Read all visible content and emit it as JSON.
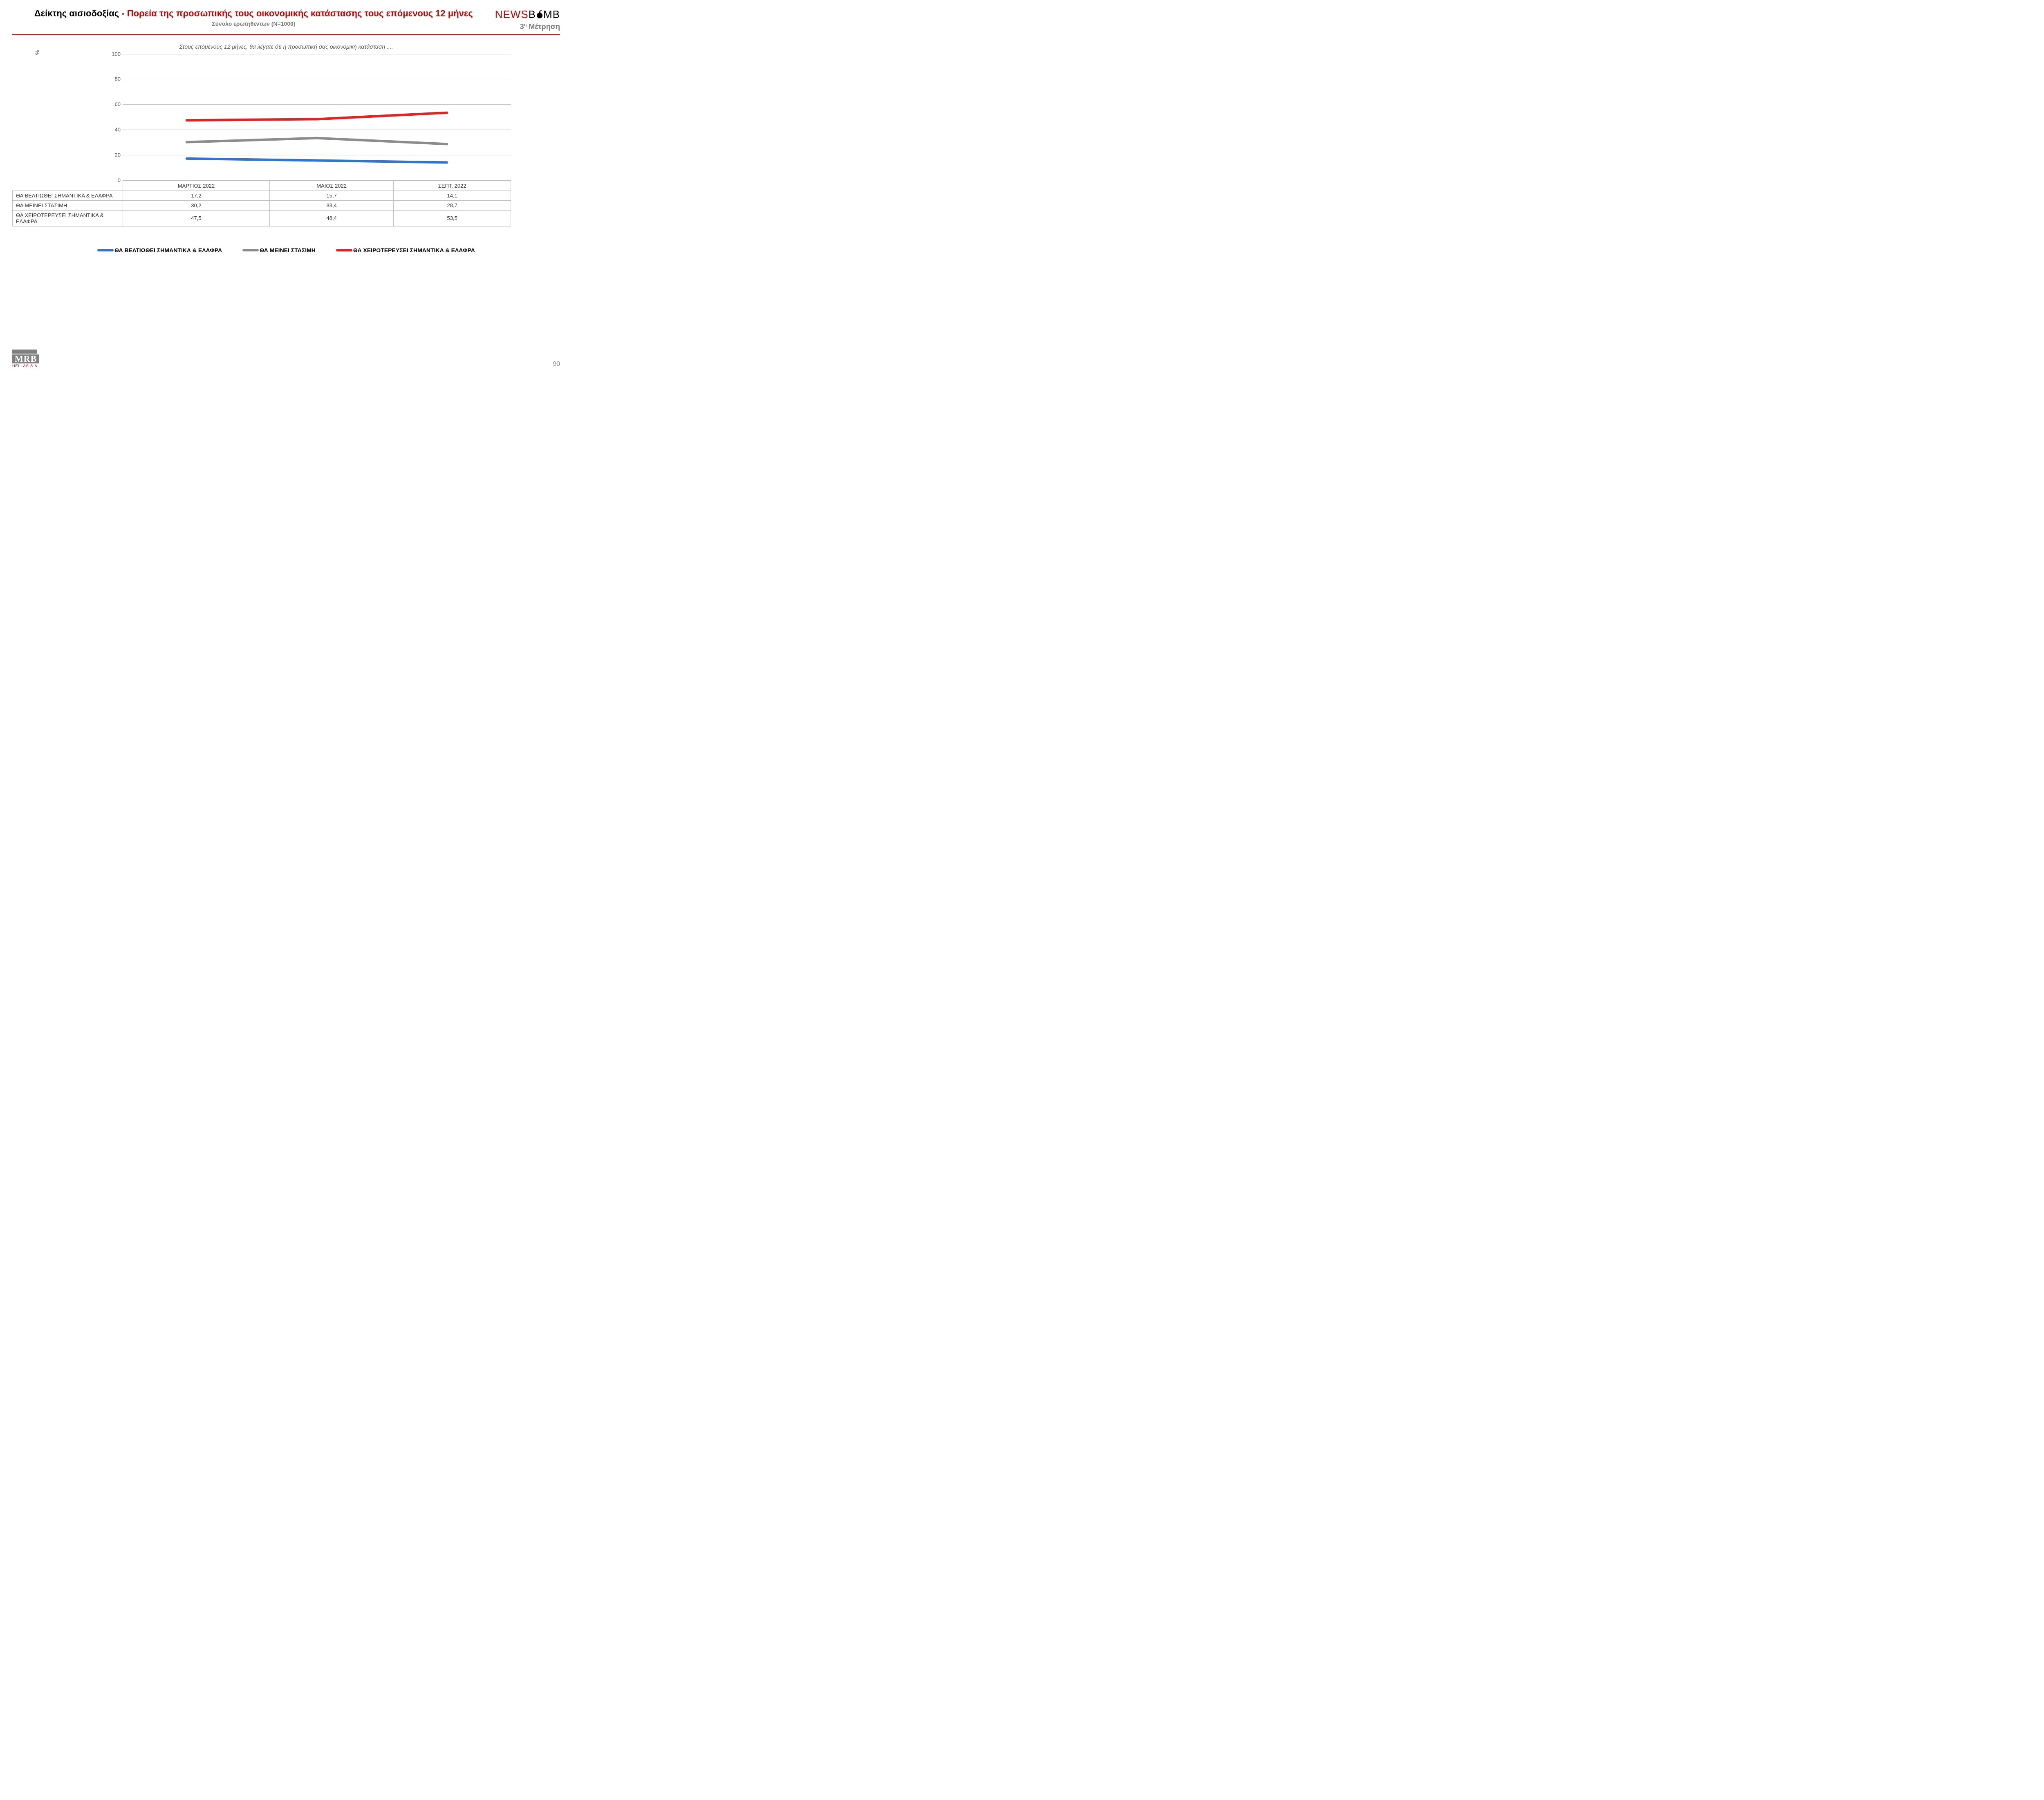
{
  "header": {
    "title_black": "Δείκτης αισιοδοξίας - ",
    "title_red": "Πορεία της προσωπικής τους οικονομικής κατάστασης τους επόμενους 12 μήνες",
    "subtitle": "Σύνολο ερωτηθέντων (Ν=1000)",
    "brand_part1": "NEWS",
    "brand_part2": "B",
    "brand_part3": "MB",
    "measurement_prefix": "3",
    "measurement_sup": "η",
    "measurement_word": " Μέτρηση"
  },
  "question": "Στους επόμενους 12 μήνες, θα λέγατε ότι η προσωπική σας οικονομική κατάσταση ....",
  "y_axis_unit": "%",
  "chart": {
    "type": "line",
    "ylim": [
      0,
      100
    ],
    "ytick_step": 20,
    "yticks": [
      "0",
      "20",
      "40",
      "60",
      "80",
      "100"
    ],
    "grid_color": "#bfbfbf",
    "background_color": "#ffffff",
    "line_width": 6,
    "categories": [
      "ΜΑΡΤΙΟΣ 2022",
      "ΜΑΙΟΣ 2022",
      "ΣΕΠΤ. 2022"
    ],
    "x_positions_pct": [
      16.5,
      50,
      83.5
    ],
    "series": [
      {
        "name": "ΘΑ ΒΕΛΤΙΩΘΕΙ ΣΗΜΑΝΤΙΚΑ & ΕΛΑΦΡΑ",
        "color": "#2e75d6",
        "values": [
          17.2,
          15.7,
          14.1
        ],
        "display": [
          "17,2",
          "15,7",
          "14,1"
        ]
      },
      {
        "name": "ΘΑ ΜΕΙΝΕΙ ΣΤΑΣΙΜΗ",
        "color": "#8c8c8c",
        "values": [
          30.2,
          33.4,
          28.7
        ],
        "display": [
          "30,2",
          "33,4",
          "28,7"
        ]
      },
      {
        "name": "ΘΑ ΧΕΙΡΟΤΕΡΕΥΣΕΙ ΣΗΜΑΝΤΙΚΑ & ΕΛΑΦΡΑ",
        "color": "#e8201f",
        "values": [
          47.5,
          48.4,
          53.5
        ],
        "display": [
          "47,5",
          "48,4",
          "53,5"
        ]
      }
    ]
  },
  "footer": {
    "mrb": "MRB",
    "mrb_sub": "HELLAS S.A.",
    "page": "90"
  }
}
